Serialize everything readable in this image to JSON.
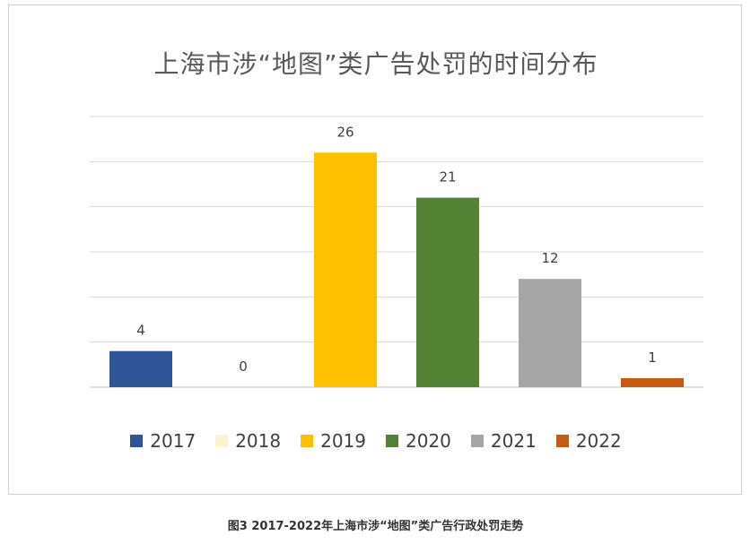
{
  "chart_data": {
    "type": "bar",
    "title": "上海市涉“地图”类广告处罚的时间分布",
    "categories": [
      "2017",
      "2018",
      "2019",
      "2020",
      "2021",
      "2022"
    ],
    "values": [
      4,
      0,
      26,
      21,
      12,
      1
    ],
    "colors": [
      "#2F5597",
      "#FFF2CC",
      "#FFC000",
      "#548235",
      "#A5A5A5",
      "#C55A11"
    ],
    "ylim": [
      0,
      30
    ],
    "grid": true,
    "legend_position": "bottom",
    "data_labels": true
  },
  "caption": "图3 2017-2022年上海市涉“地图”类广告行政处罚走势"
}
